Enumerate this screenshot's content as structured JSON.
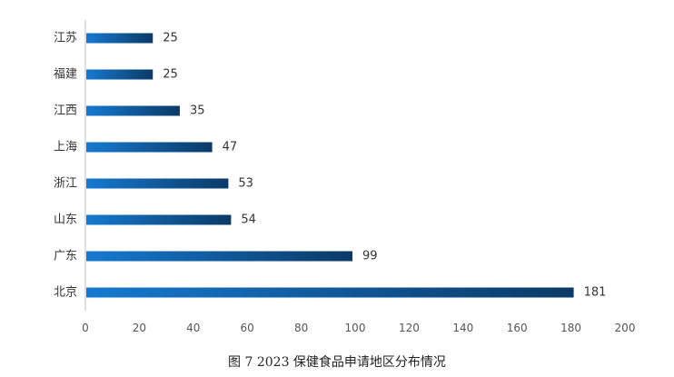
{
  "chart_data": {
    "type": "bar",
    "orientation": "horizontal",
    "title": "图 7 2023 保健食品申请地区分布情况",
    "categories": [
      "江苏",
      "福建",
      "江西",
      "上海",
      "浙江",
      "山东",
      "广东",
      "北京"
    ],
    "values": [
      25,
      25,
      35,
      47,
      53,
      54,
      99,
      181
    ],
    "xlim": [
      0,
      200
    ],
    "xticks": [
      0,
      20,
      40,
      60,
      80,
      100,
      120,
      140,
      160,
      180,
      200
    ],
    "grid": false,
    "legend": "none",
    "colors": {
      "bar_start": "#1679d0",
      "bar_end": "#0b3a66",
      "axis": "#bfbfbf"
    }
  }
}
